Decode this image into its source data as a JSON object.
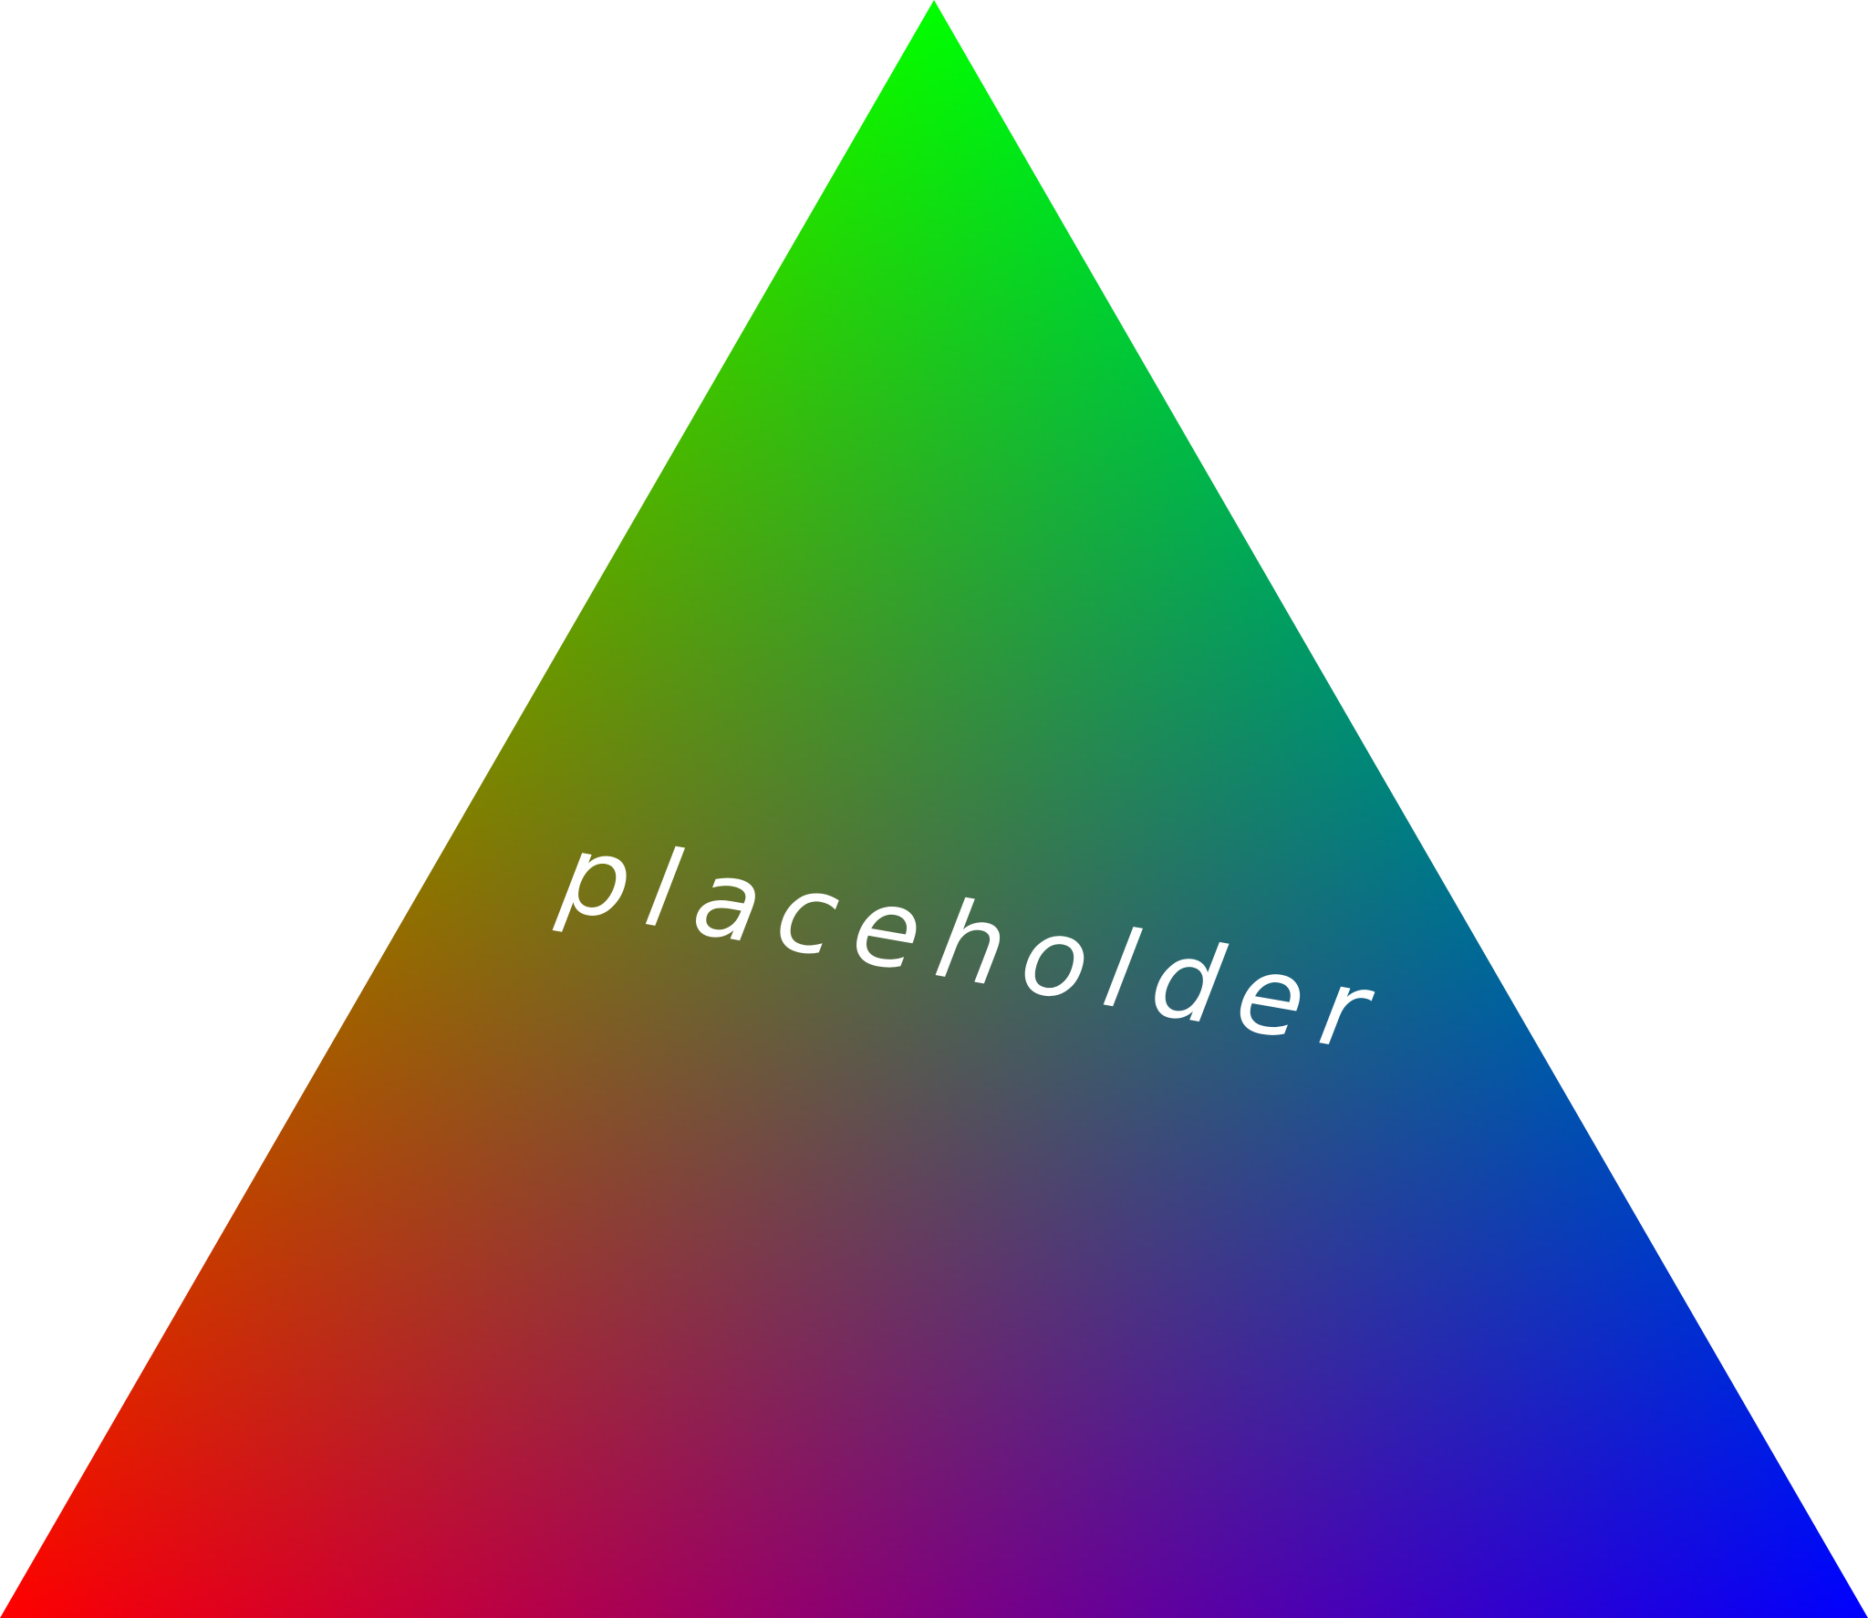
{
  "image": {
    "caption": "placeholder",
    "colors": {
      "background": "#ffffff",
      "vertex_top": "#00ff00",
      "vertex_bottom_left": "#ff0000",
      "vertex_bottom_right": "#0000ff",
      "text": "#ffffff"
    }
  }
}
